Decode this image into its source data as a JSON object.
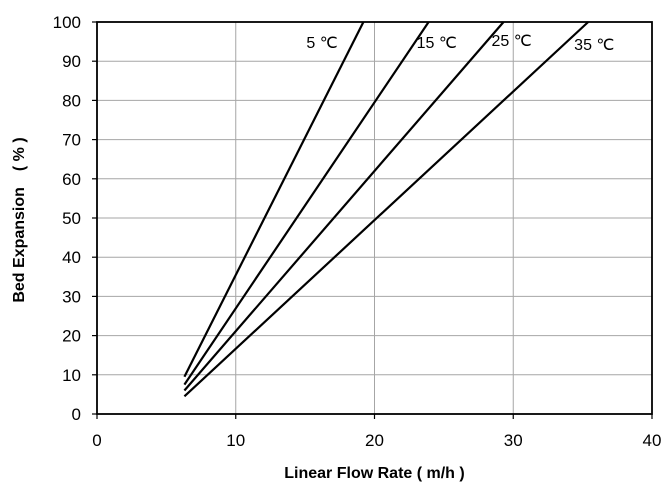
{
  "chart_data": {
    "type": "line",
    "xlabel": "Linear Flow Rate ( m/h )",
    "ylabel": "Bed Expansion　( % )",
    "xlim": [
      0,
      40
    ],
    "ylim": [
      0,
      100
    ],
    "x_ticks": [
      0,
      10,
      20,
      30,
      40
    ],
    "y_ticks": [
      0,
      10,
      20,
      30,
      40,
      50,
      60,
      70,
      80,
      90,
      100
    ],
    "grid": true,
    "legend": "inline labels near line ends",
    "series": [
      {
        "name": "5 ℃",
        "x": [
          6.3,
          19.2
        ],
        "y": [
          9.5,
          100
        ]
      },
      {
        "name": "15 ℃",
        "x": [
          6.3,
          23.9
        ],
        "y": [
          7.5,
          100
        ]
      },
      {
        "name": "25 ℃",
        "x": [
          6.3,
          29.3
        ],
        "y": [
          6,
          100
        ]
      },
      {
        "name": "35 ℃",
        "x": [
          6.3,
          35.4
        ],
        "y": [
          4.5,
          100
        ]
      }
    ]
  }
}
